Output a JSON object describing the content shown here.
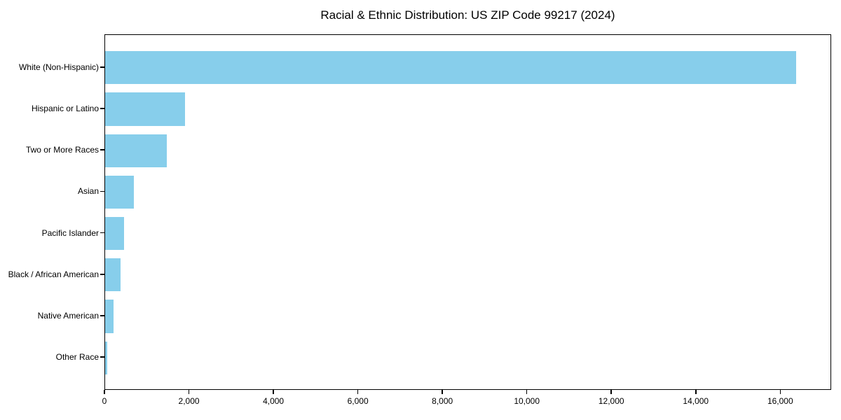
{
  "chart_data": {
    "type": "bar",
    "orientation": "horizontal",
    "title": "Racial & Ethnic Distribution: US ZIP Code 99217 (2024)",
    "xlabel": "",
    "ylabel": "",
    "categories": [
      "White (Non-Hispanic)",
      "Hispanic or Latino",
      "Two or More Races",
      "Asian",
      "Pacific Islander",
      "Black / African American",
      "Native American",
      "Other Race"
    ],
    "values": [
      16388,
      1897,
      1465,
      680,
      442,
      363,
      194,
      50
    ],
    "xlim": [
      0,
      17206
    ],
    "x_ticks": [
      0,
      2000,
      4000,
      6000,
      8000,
      10000,
      12000,
      14000,
      16000
    ],
    "x_tick_labels": [
      "0",
      "2,000",
      "4,000",
      "6,000",
      "8,000",
      "10,000",
      "12,000",
      "14,000",
      "16,000"
    ],
    "bar_color": "#87CEEB",
    "axis_color": "#000000",
    "background_color": "#FFFFFF",
    "grid": false,
    "legend": false
  }
}
